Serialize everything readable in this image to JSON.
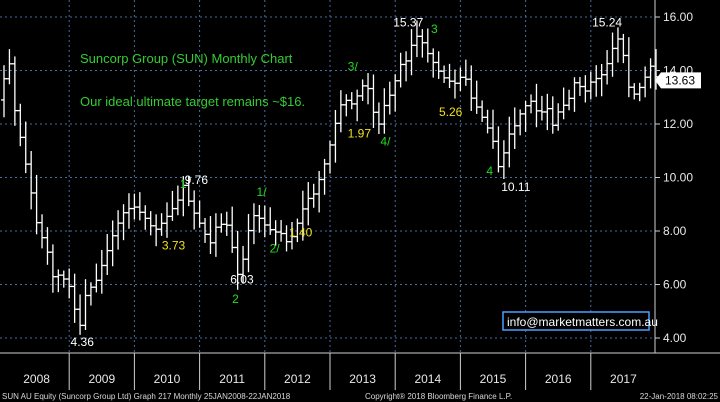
{
  "chart_data": {
    "type": "ohlc",
    "title": "Suncorp Group (SUN) Monthly Chart",
    "subtitle": "Our ideal ultimate target remains ~$16.",
    "ylim": [
      3.6,
      16.4
    ],
    "y_ticks": [
      "16.00",
      "14.00",
      "12.00",
      "10.00",
      "8.00",
      "6.00",
      "4.00"
    ],
    "y_tick_values": [
      16,
      14,
      12,
      10,
      8,
      6,
      4
    ],
    "x_range": [
      2008.0,
      2018.07
    ],
    "x_ticks": [
      "2008",
      "2009",
      "2010",
      "2011",
      "2012",
      "2013",
      "2014",
      "2015",
      "2016",
      "2017"
    ],
    "x_tick_values": [
      2008,
      2009,
      2010,
      2011,
      2012,
      2013,
      2014,
      2015,
      2016,
      2017
    ],
    "last_price": "13.63",
    "last_price_value": 13.63,
    "price_path": [
      [
        2008.0,
        12.9
      ],
      [
        2008.1,
        14.8
      ],
      [
        2008.2,
        12.6
      ],
      [
        2008.3,
        11.4
      ],
      [
        2008.4,
        10.2
      ],
      [
        2008.55,
        8.2
      ],
      [
        2008.7,
        7.3
      ],
      [
        2008.8,
        6.2
      ],
      [
        2008.9,
        6.4
      ],
      [
        2009.05,
        5.9
      ],
      [
        2009.15,
        4.8
      ],
      [
        2009.2,
        4.36
      ],
      [
        2009.3,
        5.7
      ],
      [
        2009.45,
        6.1
      ],
      [
        2009.6,
        7.1
      ],
      [
        2009.75,
        8.1
      ],
      [
        2009.9,
        8.8
      ],
      [
        2010.05,
        8.9
      ],
      [
        2010.2,
        8.5
      ],
      [
        2010.35,
        8.0
      ],
      [
        2010.5,
        8.4
      ],
      [
        2010.7,
        9.1
      ],
      [
        2010.8,
        9.76
      ],
      [
        2010.9,
        8.9
      ],
      [
        2011.0,
        8.5
      ],
      [
        2011.1,
        8.0
      ],
      [
        2011.2,
        7.5
      ],
      [
        2011.3,
        8.2
      ],
      [
        2011.45,
        8.3
      ],
      [
        2011.58,
        7.0
      ],
      [
        2011.65,
        6.03
      ],
      [
        2011.75,
        7.6
      ],
      [
        2011.85,
        8.6
      ],
      [
        2011.95,
        8.5
      ],
      [
        2012.05,
        8.2
      ],
      [
        2012.15,
        8.0
      ],
      [
        2012.3,
        7.9
      ],
      [
        2012.4,
        7.5
      ],
      [
        2012.5,
        8.0
      ],
      [
        2012.6,
        8.7
      ],
      [
        2012.7,
        9.2
      ],
      [
        2012.8,
        9.4
      ],
      [
        2012.9,
        10.1
      ],
      [
        2013.0,
        10.8
      ],
      [
        2013.1,
        11.8
      ],
      [
        2013.2,
        12.7
      ],
      [
        2013.3,
        12.9
      ],
      [
        2013.4,
        12.7
      ],
      [
        2013.5,
        13.3
      ],
      [
        2013.6,
        13.6
      ],
      [
        2013.7,
        12.5
      ],
      [
        2013.78,
        11.9
      ],
      [
        2013.9,
        12.9
      ],
      [
        2014.0,
        13.2
      ],
      [
        2014.1,
        14.2
      ],
      [
        2014.2,
        14.3
      ],
      [
        2014.3,
        15.0
      ],
      [
        2014.4,
        15.37
      ],
      [
        2014.5,
        14.8
      ],
      [
        2014.6,
        14.4
      ],
      [
        2014.7,
        14.0
      ],
      [
        2014.8,
        13.7
      ],
      [
        2014.95,
        13.5
      ],
      [
        2015.1,
        13.9
      ],
      [
        2015.2,
        13.0
      ],
      [
        2015.3,
        12.6
      ],
      [
        2015.45,
        11.9
      ],
      [
        2015.55,
        11.3
      ],
      [
        2015.65,
        10.11
      ],
      [
        2015.75,
        11.5
      ],
      [
        2015.85,
        11.8
      ],
      [
        2016.0,
        12.6
      ],
      [
        2016.15,
        12.9
      ],
      [
        2016.25,
        12.2
      ],
      [
        2016.35,
        12.8
      ],
      [
        2016.45,
        11.9
      ],
      [
        2016.55,
        12.5
      ],
      [
        2016.7,
        12.9
      ],
      [
        2016.8,
        13.6
      ],
      [
        2016.95,
        13.2
      ],
      [
        2017.05,
        13.6
      ],
      [
        2017.2,
        13.8
      ],
      [
        2017.3,
        14.3
      ],
      [
        2017.4,
        15.0
      ],
      [
        2017.45,
        15.24
      ],
      [
        2017.55,
        14.5
      ],
      [
        2017.65,
        13.0
      ],
      [
        2017.75,
        13.2
      ],
      [
        2017.85,
        13.6
      ],
      [
        2017.95,
        14.2
      ],
      [
        2018.07,
        13.63
      ]
    ],
    "annotations": [
      {
        "text": "9.76",
        "x": 2010.95,
        "y": 9.76,
        "color": "#ffffff"
      },
      {
        "text": "1",
        "x": 2010.75,
        "y": 9.6,
        "color": "#22dd22"
      },
      {
        "text": "3.73",
        "x": 2010.6,
        "y": 7.3,
        "color": "#f0e020"
      },
      {
        "text": "6.03",
        "x": 2011.65,
        "y": 6.03,
        "color": "#ffffff"
      },
      {
        "text": "2",
        "x": 2011.55,
        "y": 5.3,
        "color": "#22dd22"
      },
      {
        "text": "1/",
        "x": 2011.95,
        "y": 9.3,
        "color": "#22dd22"
      },
      {
        "text": "1.40",
        "x": 2012.55,
        "y": 7.8,
        "color": "#f0e020"
      },
      {
        "text": "2/",
        "x": 2012.15,
        "y": 7.2,
        "color": "#22dd22"
      },
      {
        "text": "3/",
        "x": 2013.35,
        "y": 14.0,
        "color": "#22dd22"
      },
      {
        "text": "1.97",
        "x": 2013.45,
        "y": 11.5,
        "color": "#f0e020"
      },
      {
        "text": "4/",
        "x": 2013.85,
        "y": 11.2,
        "color": "#22dd22"
      },
      {
        "text": "15.37",
        "x": 2014.2,
        "y": 15.65,
        "color": "#ffffff"
      },
      {
        "text": "3",
        "x": 2014.6,
        "y": 15.4,
        "color": "#22dd22"
      },
      {
        "text": "5.26",
        "x": 2014.85,
        "y": 12.3,
        "color": "#f0e020"
      },
      {
        "text": "4",
        "x": 2015.45,
        "y": 10.1,
        "color": "#22dd22"
      },
      {
        "text": "10.11",
        "x": 2015.85,
        "y": 9.5,
        "color": "#ffffff"
      },
      {
        "text": "15.24",
        "x": 2017.25,
        "y": 15.65,
        "color": "#ffffff"
      },
      {
        "text": "4.36",
        "x": 2009.2,
        "y": 3.7,
        "color": "#ffffff"
      }
    ],
    "info_box": "info@marketmatters.com.au",
    "colors": {
      "background": "#000000",
      "bars": "#ffffff",
      "grid": "#4a6aa0",
      "title": "#33cc33",
      "wave_labels": "#22dd22",
      "retracement_labels": "#f0e020",
      "price_labels": "#ffffff",
      "last_price_box": "#ffffff",
      "info_box_border": "#4aa0ff"
    }
  },
  "footer": {
    "left": "SUN AU Equity (Suncorp Group Ltd) Graph 217  Monthly 25JAN2008-22JAN2018",
    "center": "Copyright® 2018 Bloomberg Finance L.P.",
    "right": "22-Jan-2018 08:02:25"
  }
}
